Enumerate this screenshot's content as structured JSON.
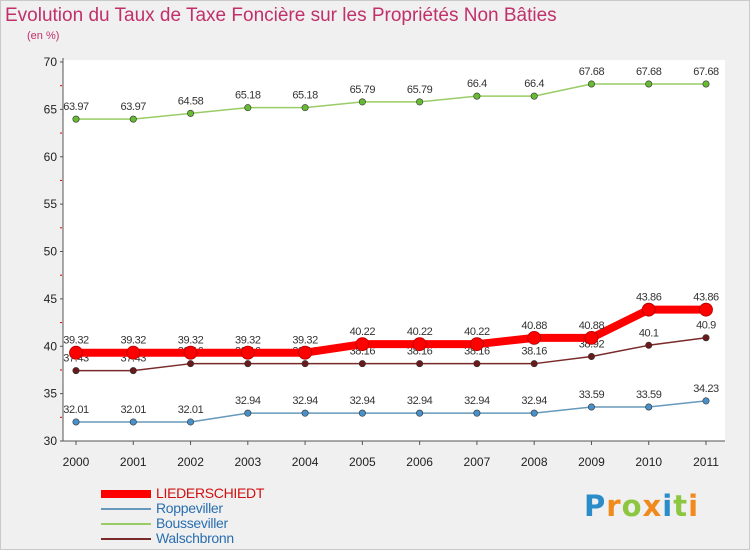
{
  "title": "Evolution du Taux de Taxe Foncière sur les Propriétés Non Bâties",
  "subtitle": "(en %)",
  "logo": {
    "letters": [
      {
        "ch": "P",
        "color": "#2a8cc9"
      },
      {
        "ch": "r",
        "color": "#f08a1c"
      },
      {
        "ch": "o",
        "color": "#8dc641"
      },
      {
        "ch": "x",
        "color": "#f08a1c"
      },
      {
        "ch": "i",
        "color": "#2a8cc9"
      },
      {
        "ch": "t",
        "color": "#8dc641"
      },
      {
        "ch": "i",
        "color": "#f08a1c"
      }
    ]
  },
  "chart_data": {
    "type": "line",
    "title": "Evolution du Taux de Taxe Foncière sur les Propriétés Non Bâties",
    "ylabel": "(en %)",
    "xlabel": "",
    "ylim": [
      30,
      70
    ],
    "yticks": [
      30,
      35,
      40,
      45,
      50,
      55,
      60,
      65,
      70
    ],
    "categories": [
      "2000",
      "2001",
      "2002",
      "2003",
      "2004",
      "2005",
      "2006",
      "2007",
      "2008",
      "2009",
      "2010",
      "2011"
    ],
    "grid": false,
    "legend_position": "bottom-left",
    "series": [
      {
        "name": "LIEDERSCHIEDT",
        "color": "#ff0000",
        "marker_color": "#ff0000",
        "emphasized": true,
        "values": [
          39.32,
          39.32,
          39.32,
          39.32,
          39.32,
          40.22,
          40.22,
          40.22,
          40.88,
          40.88,
          43.86,
          43.86
        ],
        "labels": [
          "39.32",
          "39.32",
          "39.32",
          "39.32",
          "39.32",
          "40.22",
          "40.22",
          "40.22",
          "40.88",
          "40.88",
          "43.86",
          "43.86"
        ]
      },
      {
        "name": "Roppeviller",
        "color": "#6699bb",
        "marker_color": "#4a90c8",
        "emphasized": false,
        "values": [
          32.01,
          32.01,
          32.01,
          32.94,
          32.94,
          32.94,
          32.94,
          32.94,
          32.94,
          33.59,
          33.59,
          34.23
        ],
        "labels": [
          "32.01",
          "32.01",
          "32.01",
          "32.94",
          "32.94",
          "32.94",
          "32.94",
          "32.94",
          "32.94",
          "33.59",
          "33.59",
          "34.23"
        ]
      },
      {
        "name": "Bousseviller",
        "color": "#99cc66",
        "marker_color": "#66bb33",
        "emphasized": false,
        "values": [
          63.97,
          63.97,
          64.58,
          65.18,
          65.18,
          65.79,
          65.79,
          66.4,
          66.4,
          67.68,
          67.68,
          67.68
        ],
        "labels": [
          "63.97",
          "63.97",
          "64.58",
          "65.18",
          "65.18",
          "65.79",
          "65.79",
          "66.4",
          "66.4",
          "67.68",
          "67.68",
          "67.68"
        ]
      },
      {
        "name": "Walschbronn",
        "color": "#7a2a2a",
        "marker_color": "#6a1a1a",
        "emphasized": false,
        "values": [
          37.43,
          37.43,
          38.16,
          38.16,
          38.16,
          38.16,
          38.16,
          38.16,
          38.16,
          38.92,
          40.1,
          40.9
        ],
        "labels": [
          "37.43",
          "37.43",
          "38.16",
          "38.16",
          "38.16",
          "38.16",
          "38.16",
          "38.16",
          "38.16",
          "38.92",
          "40.1",
          "40.9"
        ]
      }
    ]
  }
}
